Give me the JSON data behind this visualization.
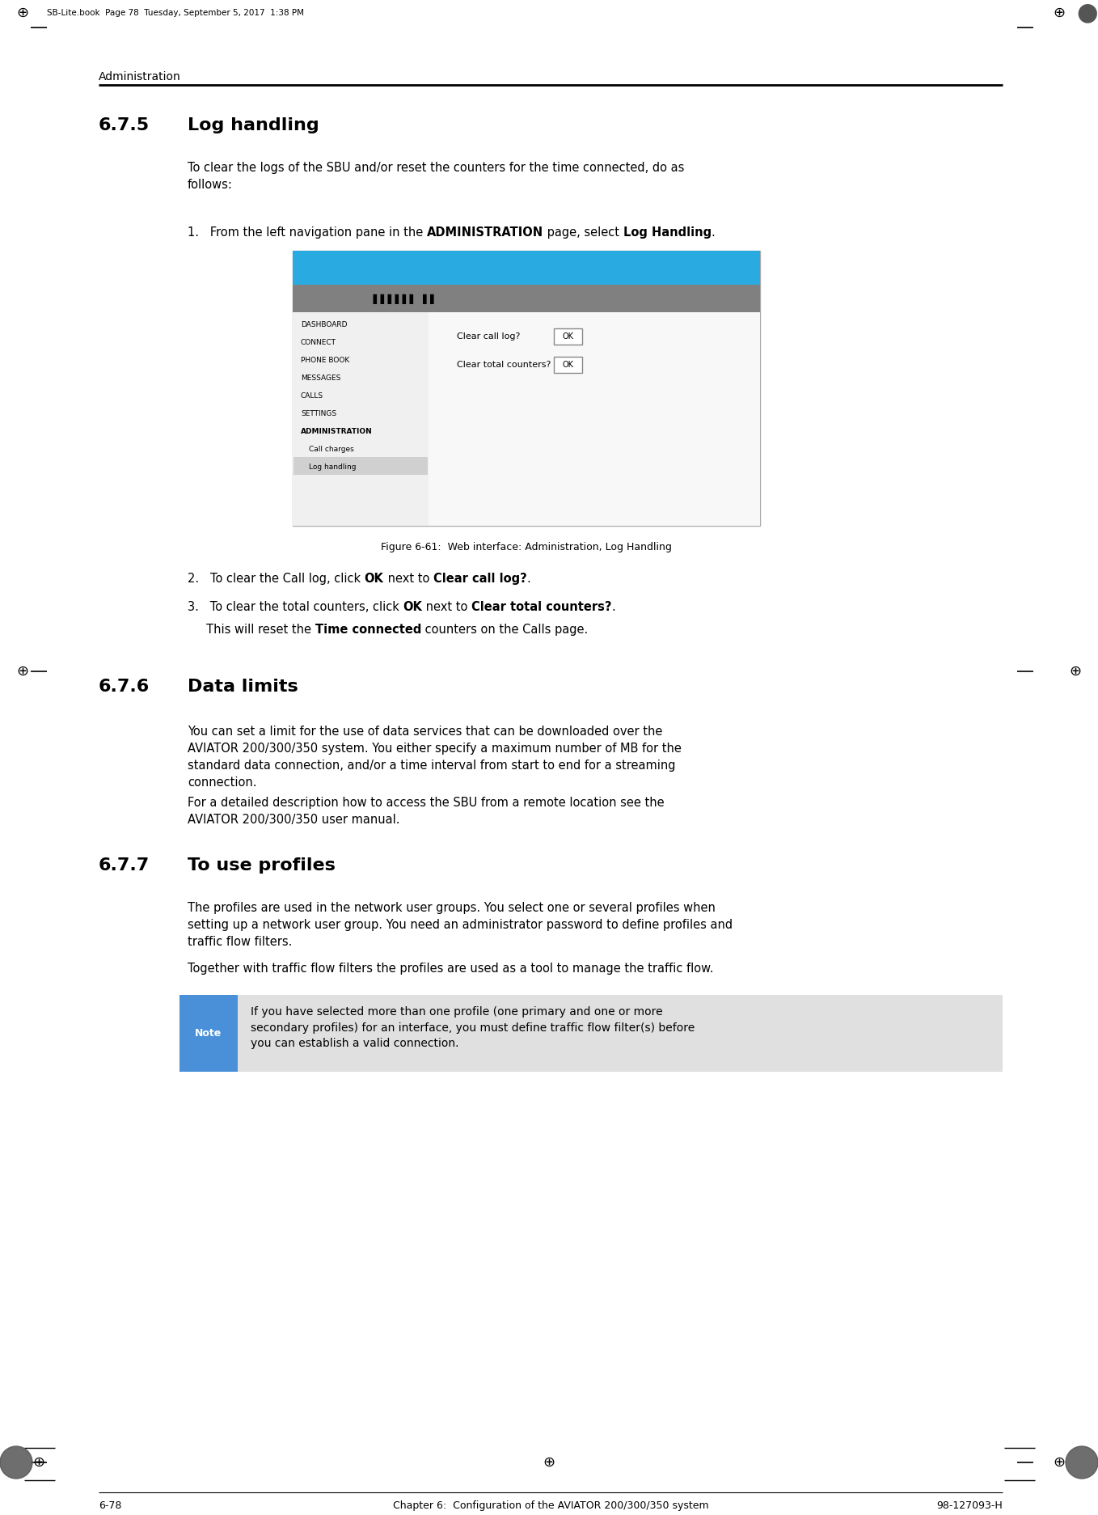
{
  "page_header_text": "Administration",
  "top_label": "SB-Lite.book  Page 78  Tuesday, September 5, 2017  1:38 PM",
  "footer_text": "6-78          Chapter 6:  Configuration of the AVIATOR 200/300/350 system          98-127093-H",
  "section_675_title_num": "6.7.5",
  "section_675_title_text": "Log handling",
  "section_675_body1": "To clear the logs of the SBU and/or reset the counters for the time connected, do as\nfollows:",
  "step1_parts": [
    [
      "1.   From the left navigation pane in the ",
      false
    ],
    [
      "ADMINISTRATION",
      true
    ],
    [
      " page, select ",
      false
    ],
    [
      "Log Handling",
      true
    ],
    [
      ".",
      false
    ]
  ],
  "figure_caption": "Figure 6-61:  Web interface: Administration, Log Handling",
  "step2_parts": [
    [
      "2.   To clear the Call log, click ",
      false
    ],
    [
      "OK",
      true
    ],
    [
      " next to ",
      false
    ],
    [
      "Clear call log?",
      true
    ],
    [
      ".",
      false
    ]
  ],
  "step3_parts": [
    [
      "3.   To clear the total counters, click ",
      false
    ],
    [
      "OK",
      true
    ],
    [
      " next to ",
      false
    ],
    [
      "Clear total counters?",
      true
    ],
    [
      ".",
      false
    ]
  ],
  "step3b_parts": [
    [
      "     This will reset the ",
      false
    ],
    [
      "Time connected",
      true
    ],
    [
      " counters on the Calls page.",
      false
    ]
  ],
  "section_676_title_num": "6.7.6",
  "section_676_title_text": "Data limits",
  "section_676_body1": "You can set a limit for the use of data services that can be downloaded over the\nAVIATOR 200/300/350 system. You either specify a maximum number of MB for the\nstandard data connection, and/or a time interval from start to end for a streaming\nconnection.",
  "section_676_body2": "For a detailed description how to access the SBU from a remote location see the\nAVIATOR 200/300/350 user manual.",
  "section_677_title_num": "6.7.7",
  "section_677_title_text": "To use profiles",
  "section_677_body1": "The profiles are used in the network user groups. You select one or several profiles when\nsetting up a network user group. You need an administrator password to define profiles and\ntraffic flow filters.",
  "section_677_body2": "Together with traffic flow filters the profiles are used as a tool to manage the traffic flow.",
  "note_text": "If you have selected more than one profile (one primary and one or more\nsecondary profiles) for an interface, you must define traffic flow filter(s) before\nyou can establish a valid connection.",
  "bg_color": "#ffffff",
  "blue_header_color": "#29abe2",
  "note_label_bg": "#4a90d9",
  "nav_items": [
    "DASHBOARD",
    "CONNECT",
    "PHONE BOOK",
    "MESSAGES",
    "CALLS",
    "SETTINGS",
    "ADMINISTRATION",
    "Call charges",
    "Log handling"
  ],
  "nav_bold_items": [
    "ADMINISTRATION"
  ]
}
